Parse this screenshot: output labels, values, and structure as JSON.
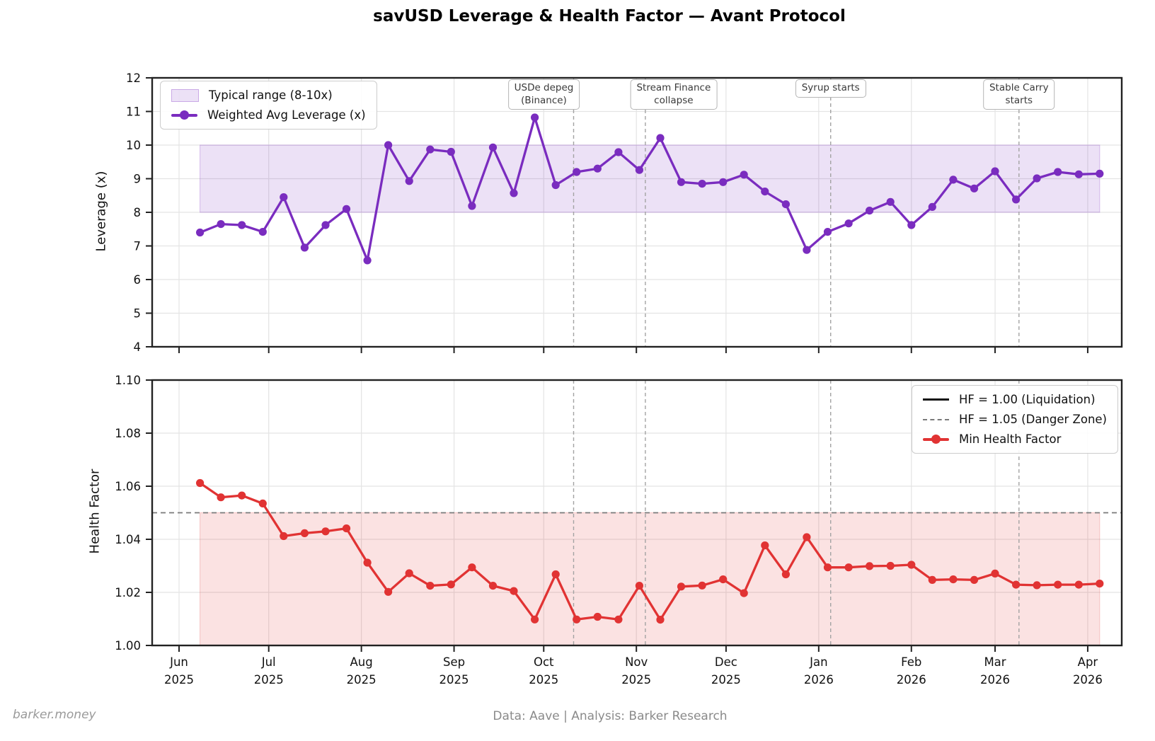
{
  "title": "savUSD Leverage & Health Factor — Avant Protocol",
  "footer": {
    "left": "barker.money",
    "center": "Data: Aave | Analysis: Barker Research"
  },
  "events": [
    {
      "date": "2025-10-11",
      "label": "USDe depeg\n(Binance)",
      "dx": -42
    },
    {
      "date": "2025-11-04",
      "label": "Stream Finance\ncollapse",
      "dx": 40
    },
    {
      "date": "2026-01-05",
      "label": "Syrup starts",
      "dx": 0
    },
    {
      "date": "2026-03-09",
      "label": "Stable Carry\nstarts",
      "dx": 0
    }
  ],
  "x_ticks": [
    {
      "month": "Jun",
      "year": "2025",
      "date": "2025-06-01"
    },
    {
      "month": "Jul",
      "year": "2025",
      "date": "2025-07-01"
    },
    {
      "month": "Aug",
      "year": "2025",
      "date": "2025-08-01"
    },
    {
      "month": "Sep",
      "year": "2025",
      "date": "2025-09-01"
    },
    {
      "month": "Oct",
      "year": "2025",
      "date": "2025-10-01"
    },
    {
      "month": "Nov",
      "year": "2025",
      "date": "2025-11-01"
    },
    {
      "month": "Dec",
      "year": "2025",
      "date": "2025-12-01"
    },
    {
      "month": "Jan",
      "year": "2026",
      "date": "2026-01-01"
    },
    {
      "month": "Feb",
      "year": "2026",
      "date": "2026-02-01"
    },
    {
      "month": "Mar",
      "year": "2026",
      "date": "2026-03-01"
    },
    {
      "month": "Apr",
      "year": "2026",
      "date": "2026-04-01"
    }
  ],
  "chart_data": [
    {
      "type": "line",
      "name": "Weighted Avg Leverage (x)",
      "ylabel": "Leverage (x)",
      "ylim": [
        4,
        12
      ],
      "yticks": [
        4,
        5,
        6,
        7,
        8,
        9,
        10,
        11,
        12
      ],
      "grid": true,
      "legend_position": "upper-left",
      "color": "#7a2cbf",
      "band": {
        "label": "Typical range (8-10x)",
        "ymin": 8,
        "ymax": 10,
        "fill": "rgba(122,44,191,0.14)",
        "edge": "rgba(122,44,191,0.25)"
      },
      "x": [
        "2025-06-08",
        "2025-06-15",
        "2025-06-22",
        "2025-06-29",
        "2025-07-06",
        "2025-07-13",
        "2025-07-20",
        "2025-07-27",
        "2025-08-03",
        "2025-08-10",
        "2025-08-17",
        "2025-08-24",
        "2025-08-31",
        "2025-09-07",
        "2025-09-14",
        "2025-09-21",
        "2025-09-28",
        "2025-10-05",
        "2025-10-12",
        "2025-10-19",
        "2025-10-26",
        "2025-11-02",
        "2025-11-09",
        "2025-11-16",
        "2025-11-23",
        "2025-11-30",
        "2025-12-07",
        "2025-12-14",
        "2025-12-21",
        "2025-12-28",
        "2026-01-04",
        "2026-01-11",
        "2026-01-18",
        "2026-01-25",
        "2026-02-01",
        "2026-02-08",
        "2026-02-15",
        "2026-02-22",
        "2026-03-01",
        "2026-03-08",
        "2026-03-15",
        "2026-03-22",
        "2026-03-29",
        "2026-04-05"
      ],
      "values": [
        7.4,
        7.65,
        7.62,
        7.42,
        8.45,
        6.95,
        7.62,
        8.1,
        6.57,
        10.0,
        8.93,
        9.87,
        9.8,
        8.19,
        9.93,
        8.57,
        10.82,
        8.81,
        9.2,
        9.3,
        9.79,
        9.26,
        10.21,
        8.9,
        8.85,
        8.9,
        9.12,
        8.62,
        8.24,
        6.88,
        7.42,
        7.67,
        8.05,
        8.31,
        7.62,
        8.16,
        8.97,
        8.71,
        9.22,
        8.38,
        9.01,
        9.2,
        9.13,
        9.15
      ]
    },
    {
      "type": "line",
      "name": "Min Health Factor",
      "ylabel": "Health Factor",
      "ylim": [
        1.0,
        1.1
      ],
      "yticks": [
        1.0,
        1.02,
        1.04,
        1.06,
        1.08,
        1.1
      ],
      "grid": true,
      "legend_position": "upper-right",
      "color": "#e13333",
      "band": {
        "label": "",
        "ymin": 1.0,
        "ymax": 1.05,
        "fill": "rgba(225,51,51,0.14)",
        "edge": "rgba(225,51,51,0.22)"
      },
      "hlines": [
        {
          "y": 1.0,
          "label": "HF = 1.00 (Liquidation)",
          "style": "solid",
          "color": "#000000"
        },
        {
          "y": 1.05,
          "label": "HF = 1.05 (Danger Zone)",
          "style": "dashed",
          "color": "#7a7a7a"
        }
      ],
      "x": [
        "2025-06-08",
        "2025-06-15",
        "2025-06-22",
        "2025-06-29",
        "2025-07-06",
        "2025-07-13",
        "2025-07-20",
        "2025-07-27",
        "2025-08-03",
        "2025-08-10",
        "2025-08-17",
        "2025-08-24",
        "2025-08-31",
        "2025-09-07",
        "2025-09-14",
        "2025-09-21",
        "2025-09-28",
        "2025-10-05",
        "2025-10-12",
        "2025-10-19",
        "2025-10-26",
        "2025-11-02",
        "2025-11-09",
        "2025-11-16",
        "2025-11-23",
        "2025-11-30",
        "2025-12-07",
        "2025-12-14",
        "2025-12-21",
        "2025-12-28",
        "2026-01-04",
        "2026-01-11",
        "2026-01-18",
        "2026-01-25",
        "2026-02-01",
        "2026-02-08",
        "2026-02-15",
        "2026-02-22",
        "2026-03-01",
        "2026-03-08",
        "2026-03-15",
        "2026-03-22",
        "2026-03-29",
        "2026-04-05"
      ],
      "values": [
        1.0612,
        1.0558,
        1.0565,
        1.0535,
        1.0412,
        1.0423,
        1.043,
        1.0441,
        1.0312,
        1.0202,
        1.0272,
        1.0225,
        1.023,
        1.0294,
        1.0225,
        1.0205,
        1.0098,
        1.0268,
        1.0098,
        1.0108,
        1.0098,
        1.0225,
        1.0097,
        1.0222,
        1.0226,
        1.0249,
        1.0197,
        1.0377,
        1.0268,
        1.0408,
        1.0294,
        1.0294,
        1.0299,
        1.03,
        1.0304,
        1.0247,
        1.0249,
        1.0247,
        1.0271,
        1.0229,
        1.0227,
        1.0229,
        1.0229,
        1.0233
      ]
    }
  ]
}
